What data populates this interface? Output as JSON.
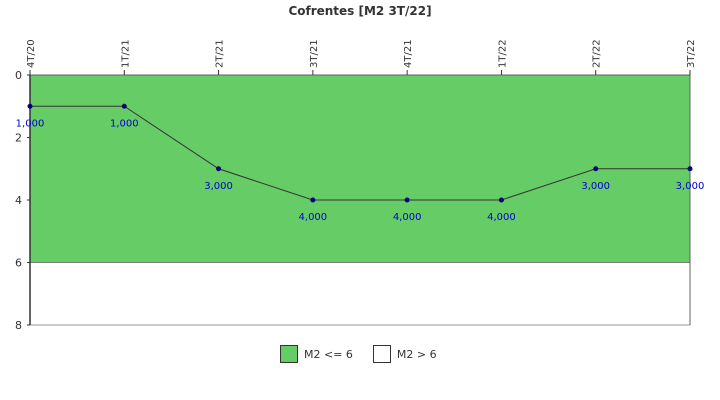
{
  "chart_data": {
    "type": "line",
    "title": "Cofrentes [M2 3T/22]",
    "categories": [
      "4T/20",
      "1T/21",
      "2T/21",
      "3T/21",
      "4T/21",
      "1T/22",
      "2T/22",
      "3T/22"
    ],
    "values": [
      1,
      1,
      3,
      4,
      4,
      4,
      3,
      3
    ],
    "data_labels": [
      "1,000",
      "1,000",
      "3,000",
      "4,000",
      "4,000",
      "4,000",
      "3,000",
      "3,000"
    ],
    "ylim": [
      0,
      8
    ],
    "y_inverted": true,
    "yticks": [
      0,
      2,
      4,
      6,
      8
    ],
    "threshold": 6,
    "bands": [
      {
        "name": "M2 <= 6",
        "color": "#66cc66",
        "from": 0,
        "to": 6
      },
      {
        "name": "M2 > 6",
        "color": "#ffffff",
        "from": 6,
        "to": 8
      }
    ],
    "line_color": "#333333",
    "marker_color": "#000080",
    "label_color": "#0000cc"
  },
  "legend": {
    "items": [
      {
        "label": "M2 <= 6",
        "color": "#66cc66"
      },
      {
        "label": "M2 > 6",
        "color": "#ffffff"
      }
    ]
  }
}
